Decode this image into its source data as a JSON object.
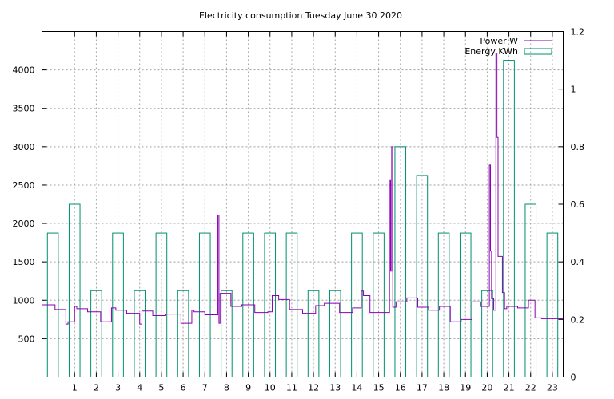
{
  "chart_data": {
    "type": "line",
    "title": "Electricity consumption Tuesday June 30 2020",
    "xlabel": "",
    "ylabel": "",
    "y2label": "",
    "xlim": [
      -0.5,
      23.5
    ],
    "ylim": [
      0,
      4500
    ],
    "y2lim": [
      0,
      1.2
    ],
    "grid": true,
    "legend_position": "top-right",
    "x_ticks": [
      1,
      2,
      3,
      4,
      5,
      6,
      7,
      8,
      9,
      10,
      11,
      12,
      13,
      14,
      15,
      16,
      17,
      18,
      19,
      20,
      21,
      22,
      23
    ],
    "y_ticks": [
      500,
      1000,
      1500,
      2000,
      2500,
      3000,
      3500,
      4000
    ],
    "y2_ticks": [
      0,
      0.2,
      0.4,
      0.6,
      0.8,
      1,
      1.2
    ],
    "series": [
      {
        "name": "Power W",
        "axis": "left",
        "style": "steps",
        "color": "#8b00b4",
        "points": [
          [
            -0.5,
            940
          ],
          [
            0.1,
            880
          ],
          [
            0.6,
            690
          ],
          [
            0.7,
            720
          ],
          [
            1.0,
            920
          ],
          [
            1.1,
            890
          ],
          [
            1.6,
            850
          ],
          [
            2.2,
            720
          ],
          [
            2.7,
            900
          ],
          [
            2.9,
            870
          ],
          [
            3.4,
            830
          ],
          [
            4.0,
            690
          ],
          [
            4.1,
            860
          ],
          [
            4.6,
            800
          ],
          [
            5.2,
            820
          ],
          [
            5.9,
            700
          ],
          [
            6.4,
            870
          ],
          [
            6.5,
            850
          ],
          [
            7.0,
            810
          ],
          [
            7.6,
            2110
          ],
          [
            7.65,
            700
          ],
          [
            7.7,
            1090
          ],
          [
            8.2,
            920
          ],
          [
            8.7,
            940
          ],
          [
            9.3,
            840
          ],
          [
            9.9,
            850
          ],
          [
            10.1,
            1060
          ],
          [
            10.4,
            1010
          ],
          [
            10.9,
            880
          ],
          [
            11.5,
            830
          ],
          [
            12.1,
            930
          ],
          [
            12.5,
            960
          ],
          [
            13.2,
            840
          ],
          [
            13.8,
            900
          ],
          [
            14.2,
            1120
          ],
          [
            14.3,
            1060
          ],
          [
            14.6,
            840
          ],
          [
            15.5,
            2570
          ],
          [
            15.55,
            1380
          ],
          [
            15.6,
            3000
          ],
          [
            15.65,
            910
          ],
          [
            15.8,
            980
          ],
          [
            16.3,
            1030
          ],
          [
            16.8,
            910
          ],
          [
            17.3,
            870
          ],
          [
            17.8,
            920
          ],
          [
            18.3,
            720
          ],
          [
            18.8,
            750
          ],
          [
            19.3,
            980
          ],
          [
            19.7,
            920
          ],
          [
            20.1,
            2760
          ],
          [
            20.15,
            1640
          ],
          [
            20.2,
            1020
          ],
          [
            20.3,
            870
          ],
          [
            20.4,
            4220
          ],
          [
            20.45,
            3120
          ],
          [
            20.5,
            1570
          ],
          [
            20.7,
            1100
          ],
          [
            20.8,
            890
          ],
          [
            20.9,
            920
          ],
          [
            21.4,
            900
          ],
          [
            21.9,
            1000
          ],
          [
            22.2,
            770
          ],
          [
            22.5,
            760
          ]
        ]
      },
      {
        "name": "Energy KWh",
        "axis": "right",
        "style": "boxes",
        "color": "#00906e",
        "bars": [
          [
            0,
            0.5
          ],
          [
            1,
            0.6
          ],
          [
            2,
            0.3
          ],
          [
            3,
            0.5
          ],
          [
            4,
            0.3
          ],
          [
            5,
            0.5
          ],
          [
            6,
            0.3
          ],
          [
            7,
            0.5
          ],
          [
            8,
            0.3
          ],
          [
            9,
            0.5
          ],
          [
            10,
            0.5
          ],
          [
            11,
            0.5
          ],
          [
            12,
            0.3
          ],
          [
            13,
            0.3
          ],
          [
            14,
            0.5
          ],
          [
            15,
            0.5
          ],
          [
            16,
            0.8
          ],
          [
            17,
            0.7
          ],
          [
            18,
            0.5
          ],
          [
            19,
            0.5
          ],
          [
            20,
            0.3
          ],
          [
            21,
            1.1
          ],
          [
            22,
            0.6
          ],
          [
            23,
            0.5
          ]
        ]
      }
    ]
  }
}
